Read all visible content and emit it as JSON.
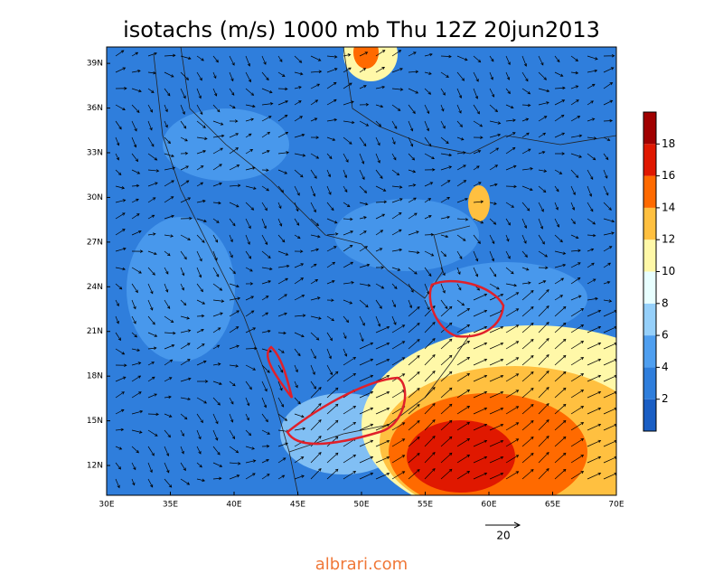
{
  "title": "isotachs (m/s) 1000 mb Thu 12Z 20jun2013",
  "map": {
    "lon_range": [
      30,
      70
    ],
    "lat_range": [
      10,
      40.1
    ],
    "lon_ticks": [
      {
        "value": 30,
        "label": "30E"
      },
      {
        "value": 35,
        "label": "35E"
      },
      {
        "value": 40,
        "label": "40E"
      },
      {
        "value": 45,
        "label": "45E"
      },
      {
        "value": 50,
        "label": "50E"
      },
      {
        "value": 55,
        "label": "55E"
      },
      {
        "value": 60,
        "label": "60E"
      },
      {
        "value": 65,
        "label": "65E"
      },
      {
        "value": 70,
        "label": "70E"
      }
    ],
    "lat_ticks": [
      {
        "value": 12,
        "label": "12N"
      },
      {
        "value": 15,
        "label": "15N"
      },
      {
        "value": 18,
        "label": "18N"
      },
      {
        "value": 21,
        "label": "21N"
      },
      {
        "value": 24,
        "label": "24N"
      },
      {
        "value": 27,
        "label": "27N"
      },
      {
        "value": 30,
        "label": "30N"
      },
      {
        "value": 33,
        "label": "33N"
      },
      {
        "value": 36,
        "label": "36N"
      },
      {
        "value": 39,
        "label": "39N"
      }
    ]
  },
  "colorbar": {
    "range": [
      0,
      20
    ],
    "ticks": [
      2,
      4,
      6,
      8,
      10,
      12,
      14,
      16,
      18
    ],
    "colors": [
      "#1a5ec4",
      "#2f7edc",
      "#4f9ff0",
      "#96d0fa",
      "#e8ffff",
      "#fff8a8",
      "#ffc040",
      "#ff6a00",
      "#e01800",
      "#a00000"
    ]
  },
  "vector_scale": "20",
  "watermark": "albrari.com"
}
